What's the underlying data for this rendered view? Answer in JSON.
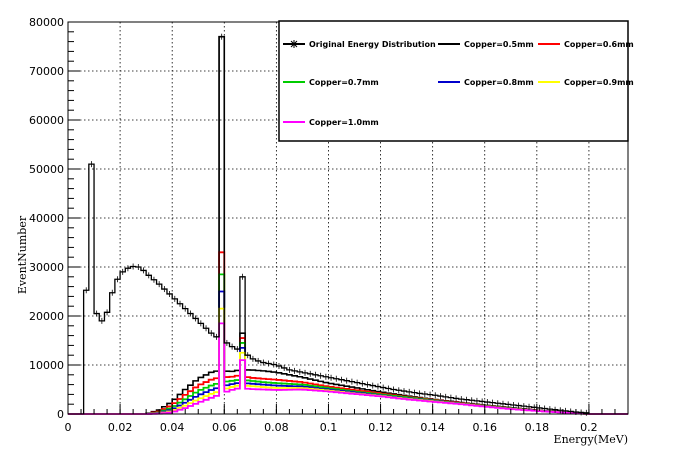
{
  "chart_data": {
    "type": "line",
    "xlabel": "Energy(MeV)",
    "ylabel": "EventNumber",
    "xlim": [
      0,
      0.215
    ],
    "ylim": [
      0,
      80000
    ],
    "x_ticks": [
      0,
      0.02,
      0.04,
      0.06,
      0.08,
      0.1,
      0.12,
      0.14,
      0.16,
      0.18,
      0.2
    ],
    "x_tick_labels": [
      "0",
      "0.02",
      "0.04",
      "0.06",
      "0.08",
      "0.1",
      "0.12",
      "0.14",
      "0.16",
      "0.18",
      "0.2"
    ],
    "y_ticks": [
      0,
      10000,
      20000,
      30000,
      40000,
      50000,
      60000,
      70000,
      80000
    ],
    "y_tick_labels": [
      "0",
      "10000",
      "20000",
      "30000",
      "40000",
      "50000",
      "60000",
      "70000",
      "80000"
    ],
    "grid": true,
    "legend_position": "top-right",
    "series": [
      {
        "name": "Original Energy Distribution",
        "color": "#000000",
        "marker": "star",
        "x": [
          0.006,
          0.008,
          0.009,
          0.01,
          0.011,
          0.012,
          0.014,
          0.016,
          0.018,
          0.02,
          0.022,
          0.024,
          0.026,
          0.028,
          0.03,
          0.032,
          0.034,
          0.036,
          0.038,
          0.04,
          0.042,
          0.044,
          0.046,
          0.048,
          0.05,
          0.052,
          0.054,
          0.056,
          0.058,
          0.059,
          0.06,
          0.062,
          0.064,
          0.066,
          0.067,
          0.068,
          0.07,
          0.072,
          0.075,
          0.08,
          0.085,
          0.09,
          0.095,
          0.1,
          0.105,
          0.11,
          0.115,
          0.12,
          0.125,
          0.13,
          0.135,
          0.14,
          0.145,
          0.15,
          0.155,
          0.16,
          0.165,
          0.17,
          0.175,
          0.18,
          0.185,
          0.19,
          0.195,
          0.2
        ],
        "values": [
          24500,
          26000,
          51000,
          50000,
          20500,
          19500,
          18500,
          23000,
          26500,
          28500,
          29500,
          30000,
          30200,
          29800,
          28800,
          27800,
          27000,
          26000,
          25000,
          24000,
          23000,
          22000,
          21000,
          20000,
          19000,
          18000,
          17000,
          16000,
          15500,
          77000,
          15000,
          14000,
          13500,
          13000,
          28000,
          12500,
          11500,
          11000,
          10500,
          10000,
          9000,
          8500,
          8000,
          7500,
          7000,
          6500,
          6000,
          5500,
          5000,
          4600,
          4200,
          3900,
          3500,
          3100,
          2800,
          2500,
          2200,
          1900,
          1600,
          1300,
          1000,
          700,
          400,
          200
        ]
      },
      {
        "name": "Copper=0.5mm",
        "color": "#000000",
        "peak_59keV": 77000,
        "peak_67keV": 16500
      },
      {
        "name": "Copper=0.6mm",
        "color": "#ff0000",
        "peak_59keV": 33000,
        "peak_67keV": 15500
      },
      {
        "name": "Copper=0.7mm",
        "color": "#00cc00",
        "peak_59keV": 28500,
        "peak_67keV": 14500
      },
      {
        "name": "Copper=0.8mm",
        "color": "#0000cc",
        "peak_59keV": 25000,
        "peak_67keV": 13500
      },
      {
        "name": "Copper=0.9mm",
        "color": "#ffff00",
        "peak_59keV": 21500,
        "peak_67keV": 12500
      },
      {
        "name": "Copper=1.0mm",
        "color": "#ff00ff",
        "peak_59keV": 18500,
        "peak_67keV": 11000
      }
    ],
    "filtered_shape": {
      "x": [
        0.03,
        0.035,
        0.04,
        0.045,
        0.05,
        0.055,
        0.059,
        0.062,
        0.066,
        0.07,
        0.075,
        0.08,
        0.09,
        0.1,
        0.11,
        0.12,
        0.13,
        0.14,
        0.15,
        0.16,
        0.17,
        0.18,
        0.19,
        0.2
      ],
      "by_series": {
        "Copper=0.5mm": [
          0,
          800,
          2500,
          5000,
          7200,
          8500,
          9000,
          8600,
          9000,
          9000,
          8800,
          8500,
          7500,
          6300,
          5400,
          4500,
          3700,
          3000,
          2400,
          1800,
          1300,
          800,
          400,
          0
        ],
        "Copper=0.6mm": [
          0,
          500,
          1800,
          3900,
          5800,
          7000,
          7600,
          7500,
          7900,
          7400,
          7200,
          7000,
          6500,
          5600,
          4900,
          4200,
          3500,
          2900,
          2300,
          1700,
          1200,
          750,
          380,
          0
        ],
        "Copper=0.7mm": [
          0,
          300,
          1300,
          3000,
          4700,
          5800,
          6500,
          6700,
          7000,
          6800,
          6500,
          6300,
          6000,
          5300,
          4600,
          4000,
          3400,
          2800,
          2200,
          1650,
          1150,
          700,
          360,
          0
        ],
        "Copper=0.8mm": [
          0,
          200,
          900,
          2300,
          3800,
          4900,
          5600,
          6000,
          6400,
          6200,
          6000,
          5800,
          5600,
          5000,
          4400,
          3800,
          3200,
          2700,
          2150,
          1600,
          1100,
          680,
          340,
          0
        ],
        "Copper=0.9mm": [
          0,
          120,
          600,
          1700,
          3000,
          4100,
          4800,
          5400,
          5900,
          5700,
          5500,
          5300,
          5300,
          4800,
          4200,
          3700,
          3100,
          2600,
          2100,
          1550,
          1050,
          650,
          320,
          0
        ],
        "Copper=1.0mm": [
          0,
          60,
          350,
          1200,
          2300,
          3300,
          4100,
          4800,
          5300,
          5100,
          5000,
          4900,
          5000,
          4600,
          4100,
          3600,
          3000,
          2500,
          2050,
          1500,
          1000,
          620,
          300,
          0
        ]
      }
    }
  }
}
